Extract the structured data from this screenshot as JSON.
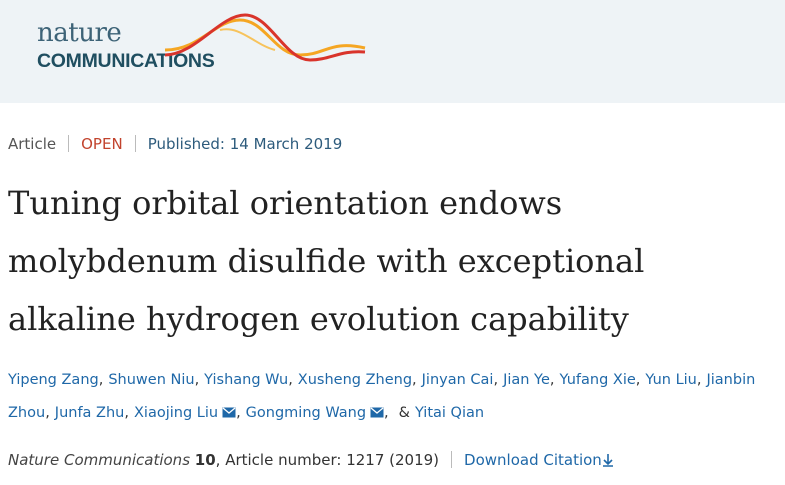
{
  "header": {
    "logo_top": "nature",
    "logo_bottom": "COMMUNICATIONS"
  },
  "meta": {
    "type": "Article",
    "access": "OPEN",
    "published": "Published: 14 March 2019"
  },
  "title": "Tuning orbital orientation endows molybdenum disulfide with exceptional alkaline hydrogen evolution capability",
  "authors": [
    {
      "name": "Yipeng Zang",
      "email": false
    },
    {
      "name": "Shuwen Niu",
      "email": false
    },
    {
      "name": "Yishang Wu",
      "email": false
    },
    {
      "name": "Xusheng Zheng",
      "email": false
    },
    {
      "name": "Jinyan Cai",
      "email": false
    },
    {
      "name": "Jian Ye",
      "email": false
    },
    {
      "name": "Yufang Xie",
      "email": false
    },
    {
      "name": "Yun Liu",
      "email": false
    },
    {
      "name": "Jianbin Zhou",
      "email": false
    },
    {
      "name": "Junfa Zhu",
      "email": false
    },
    {
      "name": "Xiaojing Liu",
      "email": true
    },
    {
      "name": "Gongming Wang",
      "email": true
    },
    {
      "name": "Yitai Qian",
      "email": false
    }
  ],
  "author_conjunction": "&",
  "citation": {
    "journal": "Nature Communications",
    "volume": "10",
    "details": ", Article number: 1217 (2019)",
    "download": "Download Citation"
  }
}
